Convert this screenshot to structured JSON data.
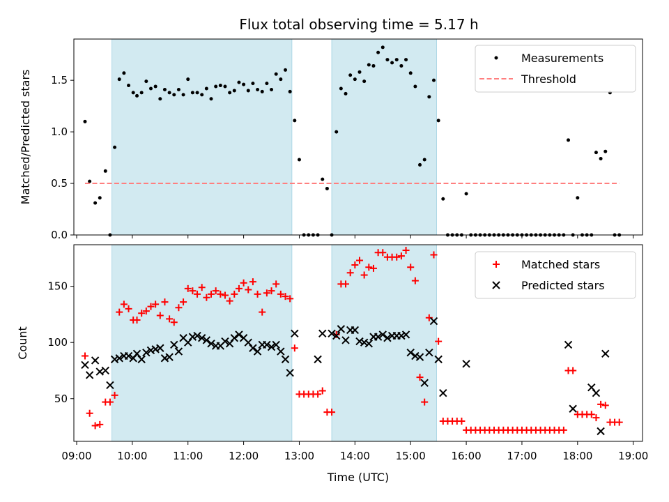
{
  "title": "Flux total observing time = 5.17 h",
  "colors": {
    "shade": "#add8e6",
    "measurement": "#000000",
    "threshold": "#ff7f7f",
    "matched": "#ff0000",
    "predicted": "#000000"
  },
  "chart_data": [
    {
      "type": "scatter",
      "panel": "top",
      "ylabel": "Matched/Predicted stars",
      "xlabel": "",
      "xlim": [
        "08:57",
        "19:10"
      ],
      "ylim": [
        0,
        1.9
      ],
      "yticks": [
        0.0,
        0.5,
        1.0,
        1.5
      ],
      "yticklabels": [
        "0.0",
        "0.5",
        "1.0",
        "1.5"
      ],
      "xticks": [
        "09:00",
        "10:00",
        "11:00",
        "12:00",
        "13:00",
        "14:00",
        "15:00",
        "16:00",
        "17:00",
        "18:00",
        "19:00"
      ],
      "legend": {
        "position": "top-right"
      },
      "shaded_intervals": [
        [
          "09:38",
          "12:52"
        ],
        [
          "13:35",
          "15:28"
        ]
      ],
      "series": [
        {
          "name": "Measurements",
          "kind": "scatter",
          "x": [
            "09:09",
            "09:14",
            "09:20",
            "09:25",
            "09:31",
            "09:36",
            "09:41",
            "09:46",
            "09:51",
            "09:56",
            "10:01",
            "10:05",
            "10:10",
            "10:15",
            "10:20",
            "10:25",
            "10:30",
            "10:35",
            "10:40",
            "10:45",
            "10:50",
            "10:55",
            "11:00",
            "11:05",
            "11:10",
            "11:15",
            "11:20",
            "11:25",
            "11:30",
            "11:35",
            "11:40",
            "11:45",
            "11:50",
            "11:55",
            "12:00",
            "12:05",
            "12:10",
            "12:15",
            "12:20",
            "12:25",
            "12:30",
            "12:35",
            "12:40",
            "12:45",
            "12:50",
            "12:55",
            "13:00",
            "13:05",
            "13:10",
            "13:15",
            "13:20",
            "13:25",
            "13:30",
            "13:35",
            "13:40",
            "13:45",
            "13:50",
            "13:55",
            "14:00",
            "14:05",
            "14:10",
            "14:15",
            "14:20",
            "14:25",
            "14:30",
            "14:35",
            "14:40",
            "14:45",
            "14:50",
            "14:55",
            "15:00",
            "15:05",
            "15:10",
            "15:15",
            "15:20",
            "15:25",
            "15:30",
            "15:35",
            "15:40",
            "15:45",
            "15:50",
            "15:55",
            "16:00",
            "16:05",
            "16:10",
            "16:15",
            "16:20",
            "16:25",
            "16:30",
            "16:35",
            "16:40",
            "16:45",
            "16:50",
            "16:55",
            "17:00",
            "17:05",
            "17:10",
            "17:15",
            "17:20",
            "17:25",
            "17:30",
            "17:35",
            "17:40",
            "17:45",
            "17:50",
            "17:55",
            "18:00",
            "18:05",
            "18:10",
            "18:15",
            "18:20",
            "18:25",
            "18:30",
            "18:35",
            "18:40",
            "18:45"
          ],
          "y": [
            1.1,
            0.52,
            0.31,
            0.36,
            0.62,
            0.0,
            0.85,
            1.51,
            1.57,
            1.45,
            1.38,
            1.35,
            1.38,
            1.49,
            1.42,
            1.44,
            1.32,
            1.41,
            1.38,
            1.36,
            1.41,
            1.36,
            1.51,
            1.38,
            1.38,
            1.36,
            1.42,
            1.32,
            1.44,
            1.45,
            1.44,
            1.38,
            1.4,
            1.48,
            1.46,
            1.4,
            1.47,
            1.41,
            1.39,
            1.47,
            1.41,
            1.56,
            1.51,
            1.6,
            1.39,
            1.11,
            0.73,
            0.0,
            0.0,
            0.0,
            0.0,
            0.54,
            0.45,
            0.0,
            1.0,
            1.42,
            1.37,
            1.55,
            1.51,
            1.58,
            1.49,
            1.65,
            1.64,
            1.77,
            1.82,
            1.7,
            1.67,
            1.7,
            1.64,
            1.7,
            1.57,
            1.44,
            0.68,
            0.73,
            1.34,
            1.5,
            1.11,
            0.35,
            0.0,
            0.0,
            0.0,
            0.0,
            0.4,
            0.0,
            0.0,
            0.0,
            0.0,
            0.0,
            0.0,
            0.0,
            0.0,
            0.0,
            0.0,
            0.0,
            0.0,
            0.0,
            0.0,
            0.0,
            0.0,
            0.0,
            0.0,
            0.0,
            0.0,
            0.0,
            0.92,
            0.0,
            0.36,
            0.0,
            0.0,
            0.0,
            0.8,
            0.74,
            0.81,
            1.38,
            0.0,
            0.0
          ]
        },
        {
          "name": "Threshold",
          "kind": "line",
          "x": [
            "09:09",
            "18:45"
          ],
          "y": [
            0.5,
            0.5
          ]
        }
      ]
    },
    {
      "type": "scatter",
      "panel": "bottom",
      "ylabel": "Count",
      "xlabel": "Time (UTC)",
      "xlim": [
        "08:57",
        "19:10"
      ],
      "ylim": [
        12,
        187
      ],
      "yticks": [
        50,
        100,
        150
      ],
      "yticklabels": [
        "50",
        "100",
        "150"
      ],
      "xticks": [
        "09:00",
        "10:00",
        "11:00",
        "12:00",
        "13:00",
        "14:00",
        "15:00",
        "16:00",
        "17:00",
        "18:00",
        "19:00"
      ],
      "xticklabels": [
        "09:00",
        "10:00",
        "11:00",
        "12:00",
        "13:00",
        "14:00",
        "15:00",
        "16:00",
        "17:00",
        "18:00",
        "19:00"
      ],
      "legend": {
        "position": "top-right"
      },
      "shaded_intervals": [
        [
          "09:38",
          "12:52"
        ],
        [
          "13:35",
          "15:28"
        ]
      ],
      "series": [
        {
          "name": "Matched stars",
          "kind": "plus",
          "x": [
            "09:09",
            "09:14",
            "09:20",
            "09:25",
            "09:31",
            "09:36",
            "09:41",
            "09:46",
            "09:51",
            "09:56",
            "10:01",
            "10:05",
            "10:10",
            "10:15",
            "10:20",
            "10:25",
            "10:30",
            "10:35",
            "10:40",
            "10:45",
            "10:50",
            "10:55",
            "11:00",
            "11:05",
            "11:10",
            "11:15",
            "11:20",
            "11:25",
            "11:30",
            "11:35",
            "11:40",
            "11:45",
            "11:50",
            "11:55",
            "12:00",
            "12:05",
            "12:10",
            "12:15",
            "12:20",
            "12:25",
            "12:30",
            "12:35",
            "12:40",
            "12:45",
            "12:50",
            "12:55",
            "13:00",
            "13:05",
            "13:10",
            "13:15",
            "13:20",
            "13:25",
            "13:30",
            "13:35",
            "13:40",
            "13:45",
            "13:50",
            "13:55",
            "14:00",
            "14:05",
            "14:10",
            "14:15",
            "14:20",
            "14:25",
            "14:30",
            "14:35",
            "14:40",
            "14:45",
            "14:50",
            "14:55",
            "15:00",
            "15:05",
            "15:10",
            "15:15",
            "15:20",
            "15:25",
            "15:30",
            "15:35",
            "15:40",
            "15:45",
            "15:50",
            "15:55",
            "16:00",
            "16:05",
            "16:10",
            "16:15",
            "16:20",
            "16:25",
            "16:30",
            "16:35",
            "16:40",
            "16:45",
            "16:50",
            "16:55",
            "17:00",
            "17:05",
            "17:10",
            "17:15",
            "17:20",
            "17:25",
            "17:30",
            "17:35",
            "17:40",
            "17:45",
            "17:50",
            "17:55",
            "18:00",
            "18:05",
            "18:10",
            "18:15",
            "18:20",
            "18:25",
            "18:30",
            "18:35",
            "18:40",
            "18:45"
          ],
          "y": [
            88,
            37,
            26,
            27,
            47,
            47,
            53,
            127,
            134,
            130,
            120,
            120,
            126,
            128,
            132,
            134,
            124,
            136,
            121,
            118,
            131,
            136,
            148,
            146,
            143,
            149,
            140,
            143,
            146,
            143,
            142,
            137,
            143,
            148,
            153,
            147,
            154,
            143,
            127,
            144,
            146,
            152,
            143,
            141,
            139,
            95,
            54,
            54,
            54,
            54,
            54,
            57,
            38,
            38,
            107,
            152,
            152,
            162,
            169,
            173,
            160,
            167,
            166,
            180,
            180,
            176,
            176,
            176,
            177,
            182,
            167,
            155,
            69,
            47,
            122,
            178,
            101,
            30,
            30,
            30,
            30,
            30,
            22,
            22,
            22,
            22,
            22,
            22,
            22,
            22,
            22,
            22,
            22,
            22,
            22,
            22,
            22,
            22,
            22,
            22,
            22,
            22,
            22,
            22,
            75,
            75,
            36,
            36,
            36,
            36,
            33,
            45,
            44,
            29,
            29,
            29
          ]
        },
        {
          "name": "Predicted stars",
          "kind": "x",
          "x": [
            "09:09",
            "09:14",
            "09:20",
            "09:25",
            "09:31",
            "09:36",
            "09:41",
            "09:46",
            "09:51",
            "09:56",
            "10:01",
            "10:05",
            "10:10",
            "10:15",
            "10:20",
            "10:25",
            "10:30",
            "10:35",
            "10:40",
            "10:45",
            "10:50",
            "10:55",
            "11:00",
            "11:05",
            "11:10",
            "11:15",
            "11:20",
            "11:25",
            "11:30",
            "11:35",
            "11:40",
            "11:45",
            "11:50",
            "11:55",
            "12:00",
            "12:05",
            "12:10",
            "12:15",
            "12:20",
            "12:25",
            "12:30",
            "12:35",
            "12:40",
            "12:45",
            "12:50",
            "12:55",
            "13:20",
            "13:25",
            "13:35",
            "13:40",
            "13:45",
            "13:50",
            "13:55",
            "14:00",
            "14:05",
            "14:10",
            "14:15",
            "14:20",
            "14:25",
            "14:30",
            "14:35",
            "14:40",
            "14:45",
            "14:50",
            "14:55",
            "15:00",
            "15:05",
            "15:10",
            "15:15",
            "15:20",
            "15:25",
            "15:30",
            "15:35",
            "16:00",
            "17:50",
            "17:55",
            "18:15",
            "18:20",
            "18:25",
            "18:30"
          ],
          "y": [
            80,
            71,
            84,
            74,
            75,
            62,
            85,
            86,
            88,
            88,
            86,
            90,
            85,
            91,
            93,
            94,
            95,
            86,
            87,
            98,
            92,
            104,
            100,
            105,
            106,
            104,
            102,
            99,
            97,
            97,
            101,
            99,
            104,
            107,
            104,
            100,
            95,
            92,
            98,
            98,
            96,
            98,
            92,
            85,
            73,
            108,
            85,
            108,
            108,
            106,
            112,
            102,
            111,
            111,
            101,
            100,
            99,
            105,
            105,
            107,
            104,
            106,
            106,
            106,
            107,
            91,
            88,
            87,
            64,
            91,
            119,
            85,
            55,
            81,
            98,
            41,
            60,
            55,
            21,
            90
          ]
        }
      ]
    }
  ]
}
